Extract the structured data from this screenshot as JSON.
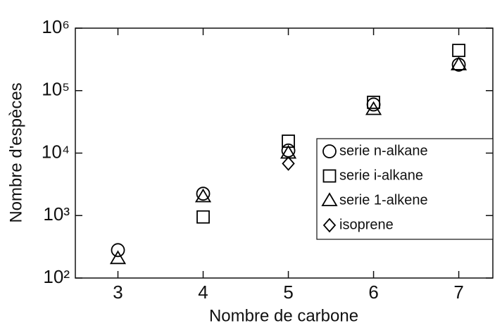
{
  "chart_data": {
    "type": "scatter",
    "x_label": "Nombre de carbone",
    "y_label": "Nombre d'espèces",
    "x": [
      3,
      4,
      5,
      6,
      7
    ],
    "xlim": [
      2.5,
      7.4
    ],
    "xticks": [
      3,
      4,
      5,
      6,
      7
    ],
    "ylim": [
      100,
      1000000
    ],
    "y_scale": "log",
    "yticks": [
      {
        "value": 100,
        "label": "10²"
      },
      {
        "value": 1000,
        "label": "10³"
      },
      {
        "value": 10000,
        "label": "10⁴"
      },
      {
        "value": 100000,
        "label": "10⁵"
      },
      {
        "value": 1000000,
        "label": "10⁶"
      }
    ],
    "legend_position": "right",
    "series": [
      {
        "name": "serie n-alkane",
        "color": "#000000",
        "marker": "circle",
        "values": [
          280,
          2240,
          11000,
          60000,
          260000
        ]
      },
      {
        "name": "serie  i-alkane",
        "color": "#000000",
        "marker": "square",
        "values": [
          null,
          950,
          15500,
          65000,
          440000
        ]
      },
      {
        "name": "serie  1-alkene",
        "color": "#000000",
        "marker": "triangle",
        "values": [
          205,
          2000,
          10000,
          50000,
          260000
        ]
      },
      {
        "name": "isoprene",
        "color": "#000000",
        "marker": "diamond",
        "values": [
          null,
          null,
          6800,
          null,
          null
        ]
      }
    ]
  }
}
